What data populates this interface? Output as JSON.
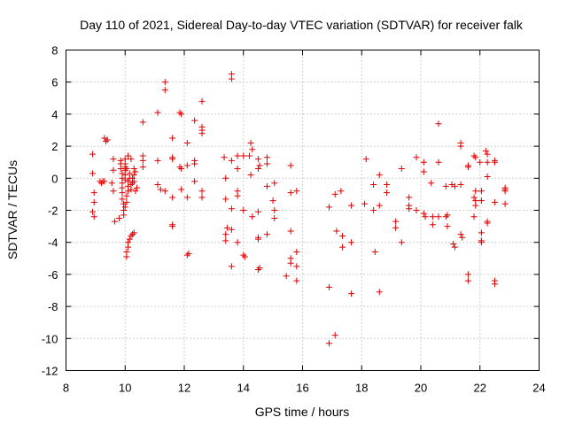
{
  "chart_data": {
    "type": "scatter",
    "title": "Day 110 of 2021, Sidereal Day-to-day VTEC variation (SDTVAR) for receiver falk",
    "xlabel": "GPS time / hours",
    "ylabel": "SDTVAR / TECUs",
    "xlim": [
      8,
      24
    ],
    "ylim": [
      -12,
      8
    ],
    "xticks": [
      "8",
      "10",
      "12",
      "14",
      "16",
      "18",
      "20",
      "22",
      "24"
    ],
    "yticks": [
      "8",
      "6",
      "4",
      "2",
      "0",
      "-2",
      "-4",
      "-6",
      "-8",
      "-10",
      "-12"
    ],
    "grid": true,
    "marker": "plus",
    "color": "#e00000",
    "series": [
      {
        "name": "falk",
        "points": [
          [
            8.9,
            1.5
          ],
          [
            8.9,
            0.3
          ],
          [
            8.95,
            -0.9
          ],
          [
            8.95,
            -1.5
          ],
          [
            8.9,
            -2.1
          ],
          [
            8.95,
            -2.4
          ],
          [
            9.15,
            -0.2
          ],
          [
            9.2,
            -0.3
          ],
          [
            9.25,
            -0.2
          ],
          [
            9.3,
            2.5
          ],
          [
            9.35,
            2.3
          ],
          [
            9.4,
            2.4
          ],
          [
            9.3,
            -0.2
          ],
          [
            9.6,
            1.2
          ],
          [
            9.6,
            0.5
          ],
          [
            9.55,
            -0.3
          ],
          [
            9.6,
            -0.8
          ],
          [
            9.65,
            -2.7
          ],
          [
            9.8,
            -2.5
          ],
          [
            9.85,
            1.1
          ],
          [
            9.85,
            0.9
          ],
          [
            9.85,
            0.6
          ],
          [
            9.9,
            0.3
          ],
          [
            9.9,
            0.0
          ],
          [
            9.9,
            -0.3
          ],
          [
            9.9,
            -0.6
          ],
          [
            9.9,
            -0.9
          ],
          [
            9.9,
            -1.3
          ],
          [
            9.95,
            -1.6
          ],
          [
            9.95,
            -2.0
          ],
          [
            9.95,
            -2.3
          ],
          [
            10.0,
            1.2
          ],
          [
            10.0,
            0.9
          ],
          [
            10.0,
            0.7
          ],
          [
            10.0,
            0.5
          ],
          [
            10.0,
            0.2
          ],
          [
            10.0,
            -0.1
          ],
          [
            10.0,
            -1.8
          ],
          [
            10.05,
            -1.5
          ],
          [
            10.05,
            -1.1
          ],
          [
            10.1,
            -0.8
          ],
          [
            10.1,
            -0.5
          ],
          [
            10.1,
            -0.2
          ],
          [
            10.15,
            0.0
          ],
          [
            10.15,
            0.3
          ],
          [
            10.2,
            -0.4
          ],
          [
            10.2,
            -0.7
          ],
          [
            10.25,
            -0.3
          ],
          [
            10.25,
            0.0
          ],
          [
            10.3,
            -0.2
          ],
          [
            10.3,
            0.2
          ],
          [
            10.35,
            0.4
          ],
          [
            10.05,
            -4.9
          ],
          [
            10.05,
            -4.6
          ],
          [
            10.1,
            -4.3
          ],
          [
            10.1,
            -4.0
          ],
          [
            10.15,
            -3.8
          ],
          [
            10.2,
            -3.6
          ],
          [
            10.25,
            -3.5
          ],
          [
            10.3,
            -3.4
          ],
          [
            10.1,
            1.4
          ],
          [
            10.2,
            1.2
          ],
          [
            10.05,
            0.6
          ],
          [
            10.3,
            0.6
          ],
          [
            10.35,
            -0.8
          ],
          [
            10.4,
            -0.6
          ],
          [
            10.6,
            3.5
          ],
          [
            10.6,
            1.4
          ],
          [
            10.6,
            1.1
          ],
          [
            10.6,
            0.7
          ],
          [
            11.1,
            4.1
          ],
          [
            11.1,
            1.1
          ],
          [
            11.1,
            -0.4
          ],
          [
            11.2,
            -0.7
          ],
          [
            11.35,
            6.0
          ],
          [
            11.35,
            5.5
          ],
          [
            11.35,
            -0.8
          ],
          [
            11.6,
            2.5
          ],
          [
            11.6,
            1.3
          ],
          [
            11.6,
            1.2
          ],
          [
            11.6,
            -1.2
          ],
          [
            11.6,
            -2.9
          ],
          [
            11.6,
            -3.0
          ],
          [
            11.85,
            4.1
          ],
          [
            11.85,
            0.7
          ],
          [
            11.9,
            0.6
          ],
          [
            11.9,
            -0.7
          ],
          [
            11.9,
            4.0
          ],
          [
            12.1,
            2.2
          ],
          [
            12.1,
            0.8
          ],
          [
            12.1,
            -1.2
          ],
          [
            12.1,
            -4.8
          ],
          [
            12.15,
            -4.7
          ],
          [
            12.35,
            3.6
          ],
          [
            12.35,
            1.1
          ],
          [
            12.35,
            0.9
          ],
          [
            12.35,
            -0.2
          ],
          [
            12.6,
            4.8
          ],
          [
            12.6,
            3.2
          ],
          [
            12.6,
            3.0
          ],
          [
            12.6,
            2.8
          ],
          [
            12.6,
            -0.8
          ],
          [
            12.6,
            -1.2
          ],
          [
            13.35,
            1.3
          ],
          [
            13.4,
            0.0
          ],
          [
            13.4,
            -1.3
          ],
          [
            13.45,
            -3.1
          ],
          [
            13.4,
            -3.9
          ],
          [
            13.4,
            -3.5
          ],
          [
            13.6,
            6.5
          ],
          [
            13.6,
            6.2
          ],
          [
            13.6,
            1.1
          ],
          [
            13.6,
            -1.9
          ],
          [
            13.6,
            -3.2
          ],
          [
            13.6,
            -5.5
          ],
          [
            13.8,
            1.4
          ],
          [
            13.8,
            0.6
          ],
          [
            13.8,
            -0.8
          ],
          [
            13.8,
            -1.1
          ],
          [
            13.8,
            -4.0
          ],
          [
            14.0,
            1.4
          ],
          [
            14.0,
            -2.0
          ],
          [
            14.05,
            -4.9
          ],
          [
            14.0,
            -4.8
          ],
          [
            14.25,
            2.2
          ],
          [
            14.3,
            1.8
          ],
          [
            14.2,
            1.4
          ],
          [
            14.25,
            0.2
          ],
          [
            14.3,
            -2.4
          ],
          [
            14.5,
            1.2
          ],
          [
            14.5,
            0.6
          ],
          [
            14.55,
            0.8
          ],
          [
            14.5,
            -2.1
          ],
          [
            14.5,
            -3.8
          ],
          [
            14.5,
            -3.7
          ],
          [
            14.55,
            -5.6
          ],
          [
            14.5,
            -5.7
          ],
          [
            14.8,
            1.3
          ],
          [
            14.8,
            0.9
          ],
          [
            14.8,
            -0.5
          ],
          [
            14.8,
            -3.5
          ],
          [
            15.05,
            -0.3
          ],
          [
            15.0,
            -1.4
          ],
          [
            15.05,
            -2.0
          ],
          [
            15.05,
            -2.5
          ],
          [
            15.45,
            -6.1
          ],
          [
            15.6,
            0.8
          ],
          [
            15.6,
            -0.9
          ],
          [
            15.6,
            -3.3
          ],
          [
            15.6,
            -5.0
          ],
          [
            15.6,
            -5.3
          ],
          [
            15.8,
            -0.8
          ],
          [
            15.8,
            -4.6
          ],
          [
            15.8,
            -5.5
          ],
          [
            15.8,
            -6.4
          ],
          [
            16.9,
            -1.8
          ],
          [
            16.9,
            -6.8
          ],
          [
            16.9,
            -10.3
          ],
          [
            17.1,
            -1.0
          ],
          [
            17.15,
            -3.3
          ],
          [
            17.1,
            -9.8
          ],
          [
            17.3,
            -0.8
          ],
          [
            17.35,
            -3.6
          ],
          [
            17.35,
            -4.3
          ],
          [
            17.65,
            -1.7
          ],
          [
            17.65,
            -4.0
          ],
          [
            17.65,
            -7.2
          ],
          [
            18.15,
            1.2
          ],
          [
            18.1,
            -1.6
          ],
          [
            18.4,
            -0.4
          ],
          [
            18.4,
            -2.0
          ],
          [
            18.45,
            -4.6
          ],
          [
            18.6,
            0.2
          ],
          [
            18.6,
            -1.7
          ],
          [
            18.6,
            -7.1
          ],
          [
            18.85,
            -0.4
          ],
          [
            18.85,
            -0.9
          ],
          [
            19.15,
            -2.7
          ],
          [
            19.15,
            -3.1
          ],
          [
            19.35,
            -4.0
          ],
          [
            19.35,
            0.6
          ],
          [
            19.6,
            -1.2
          ],
          [
            19.6,
            -1.7
          ],
          [
            19.6,
            -1.9
          ],
          [
            19.85,
            1.3
          ],
          [
            19.85,
            -2.0
          ],
          [
            20.1,
            1.0
          ],
          [
            20.1,
            0.4
          ],
          [
            20.1,
            -2.2
          ],
          [
            20.15,
            -2.4
          ],
          [
            20.35,
            -0.3
          ],
          [
            20.4,
            -2.4
          ],
          [
            20.4,
            -2.9
          ],
          [
            20.6,
            3.4
          ],
          [
            20.6,
            1.0
          ],
          [
            20.6,
            -2.4
          ],
          [
            20.85,
            -0.5
          ],
          [
            20.9,
            -2.3
          ],
          [
            20.9,
            -3.0
          ],
          [
            20.85,
            -2.4
          ],
          [
            21.05,
            -0.4
          ],
          [
            21.1,
            -4.1
          ],
          [
            21.15,
            -4.3
          ],
          [
            21.15,
            -0.5
          ],
          [
            21.35,
            2.2
          ],
          [
            21.35,
            2.0
          ],
          [
            21.35,
            -0.4
          ],
          [
            21.35,
            -3.5
          ],
          [
            21.4,
            -3.7
          ],
          [
            21.6,
            0.8
          ],
          [
            21.6,
            0.7
          ],
          [
            21.6,
            -6.0
          ],
          [
            21.6,
            -6.4
          ],
          [
            21.8,
            1.4
          ],
          [
            21.85,
            1.3
          ],
          [
            21.85,
            -0.8
          ],
          [
            21.8,
            -1.2
          ],
          [
            21.85,
            -1.4
          ],
          [
            21.85,
            -1.7
          ],
          [
            21.8,
            -2.4
          ],
          [
            22.0,
            1.0
          ],
          [
            22.05,
            -0.8
          ],
          [
            22.05,
            -1.4
          ],
          [
            22.05,
            -3.4
          ],
          [
            22.05,
            -3.9
          ],
          [
            22.05,
            -4.0
          ],
          [
            22.2,
            1.7
          ],
          [
            22.25,
            1.5
          ],
          [
            22.25,
            1.0
          ],
          [
            22.25,
            0.1
          ],
          [
            22.25,
            -2.7
          ],
          [
            22.25,
            -2.8
          ],
          [
            22.5,
            1.1
          ],
          [
            22.5,
            1.0
          ],
          [
            22.5,
            -1.5
          ],
          [
            22.5,
            -6.4
          ],
          [
            22.5,
            -6.6
          ],
          [
            22.85,
            -0.6
          ],
          [
            22.85,
            -0.8
          ],
          [
            22.85,
            -1.6
          ],
          [
            22.85,
            -0.7
          ]
        ]
      }
    ]
  }
}
